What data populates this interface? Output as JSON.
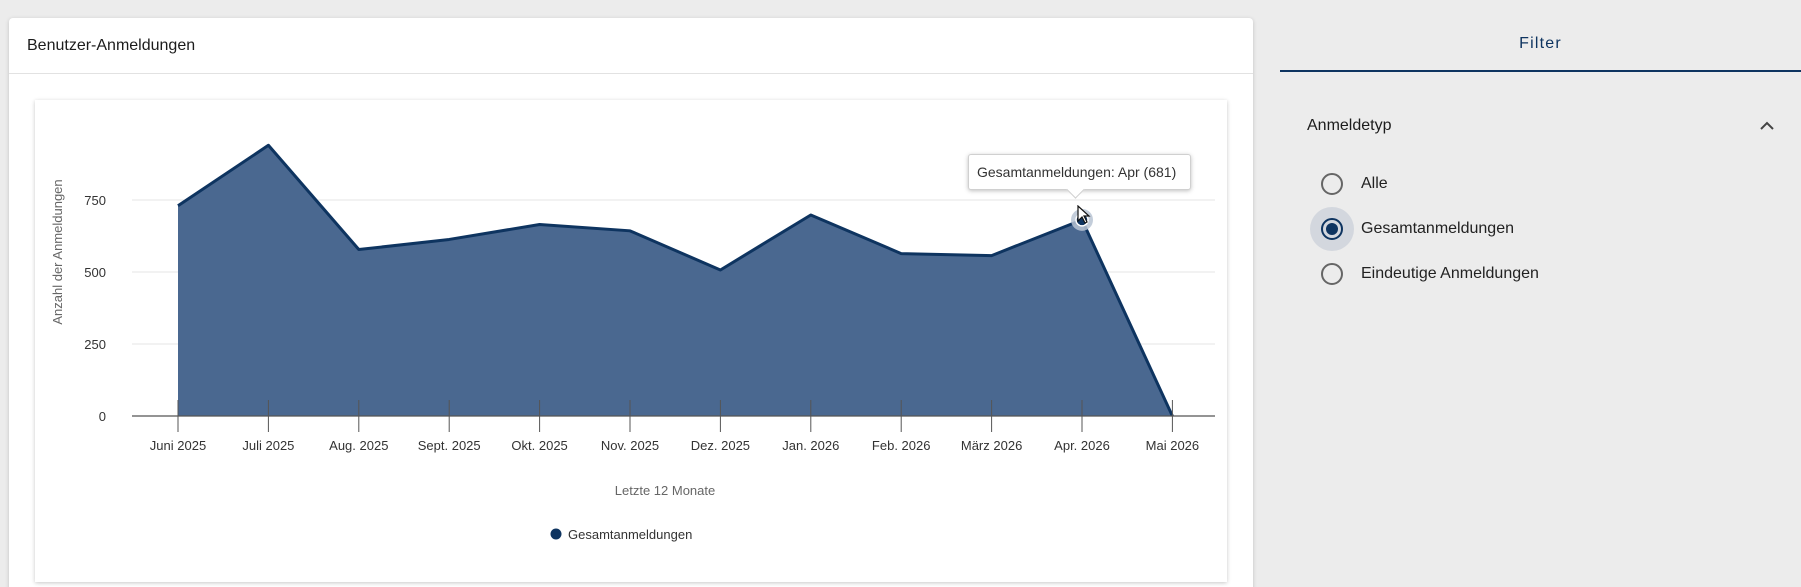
{
  "card": {
    "title": "Benutzer-Anmeldungen"
  },
  "chart_data": {
    "type": "area",
    "categories": [
      "Juni 2025",
      "Juli 2025",
      "Aug. 2025",
      "Sept. 2025",
      "Okt. 2025",
      "Nov. 2025",
      "Dez. 2025",
      "Jan. 2026",
      "Feb. 2026",
      "März 2026",
      "Apr. 2026",
      "Mai 2026"
    ],
    "series": [
      {
        "name": "Gesamtanmeldungen",
        "values": [
          730,
          940,
          578,
          613,
          665,
          643,
          507,
          698,
          564,
          557,
          681,
          0
        ]
      }
    ],
    "xlabel": "Letzte 12 Monate",
    "ylabel": "Anzahl der Anmeldungen",
    "yticks": [
      0,
      250,
      500,
      750
    ],
    "ylim": [
      0,
      1000
    ],
    "grid": true,
    "legend": "bottom-center",
    "colors": {
      "area": "#4a6890",
      "line": "#0e3460",
      "grid": "#e6e6e6"
    },
    "tooltip": {
      "text": "Gesamtanmeldungen: Apr (681)",
      "index": 10
    }
  },
  "filter": {
    "title": "Filter",
    "section_title": "Anmeldetyp",
    "collapse_icon": "chevron-up-icon",
    "options": [
      {
        "label": "Alle",
        "checked": false
      },
      {
        "label": "Gesamtanmeldungen",
        "checked": true
      },
      {
        "label": "Eindeutige Anmeldungen",
        "checked": false
      }
    ]
  }
}
